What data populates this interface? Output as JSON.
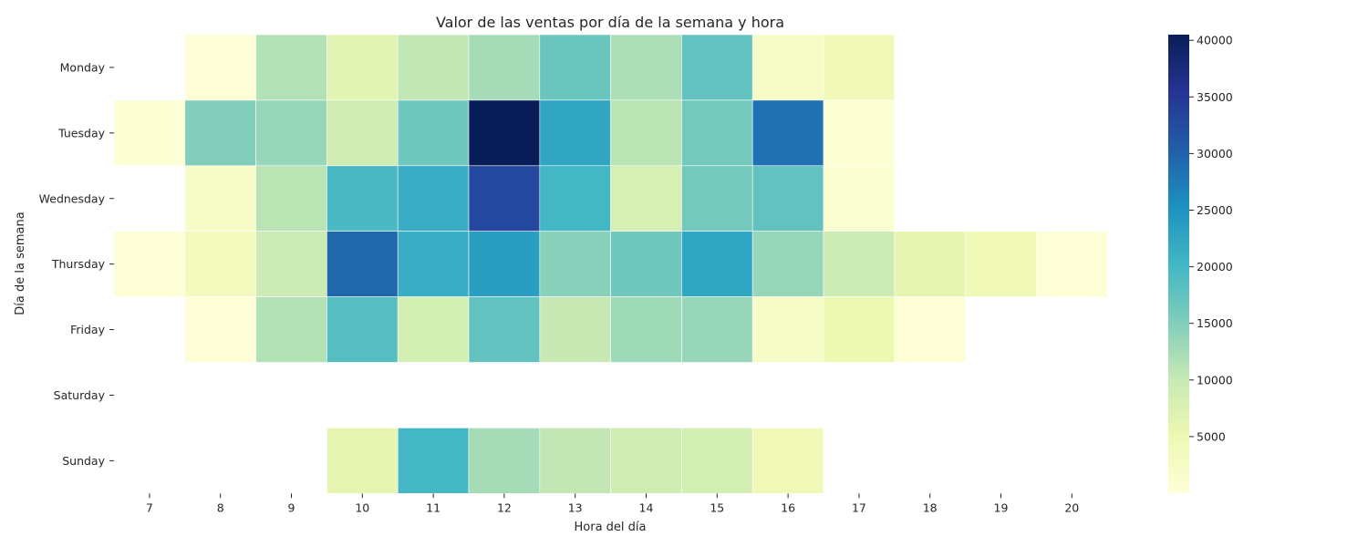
{
  "chart_data": {
    "type": "heatmap",
    "title": "Valor de las ventas por día de la semana y hora",
    "xlabel": "Hora del día",
    "ylabel": "Día de la semana",
    "x": [
      "7",
      "8",
      "9",
      "10",
      "11",
      "12",
      "13",
      "14",
      "15",
      "16",
      "17",
      "18",
      "19",
      "20"
    ],
    "y": [
      "Monday",
      "Tuesday",
      "Wednesday",
      "Thursday",
      "Friday",
      "Saturday",
      "Sunday"
    ],
    "values": [
      [
        null,
        400,
        11500,
        6500,
        10500,
        12500,
        17000,
        12000,
        17500,
        2500,
        4000,
        null,
        null,
        null
      ],
      [
        800,
        15000,
        13500,
        9000,
        16500,
        40500,
        22500,
        11000,
        16000,
        28500,
        800,
        null,
        null,
        null
      ],
      [
        null,
        2000,
        11000,
        19500,
        21500,
        33000,
        20000,
        8000,
        16000,
        17500,
        1000,
        null,
        null,
        null
      ],
      [
        500,
        3500,
        9500,
        29500,
        21500,
        23500,
        14500,
        16500,
        22500,
        13500,
        9500,
        6000,
        4000,
        500
      ],
      [
        null,
        500,
        11500,
        18500,
        8500,
        17500,
        10000,
        13000,
        13500,
        2500,
        5000,
        500,
        null,
        null
      ],
      [
        null,
        null,
        null,
        null,
        null,
        null,
        null,
        null,
        null,
        null,
        null,
        null,
        null,
        null
      ],
      [
        null,
        null,
        null,
        6000,
        20000,
        12500,
        10500,
        9000,
        8500,
        4000,
        null,
        null,
        null,
        null
      ]
    ],
    "colorbar": {
      "colormap": "YlGnBu",
      "min": 0,
      "max": 40500,
      "ticks": [
        "5000",
        "10000",
        "15000",
        "20000",
        "25000",
        "30000",
        "35000",
        "40000"
      ]
    },
    "colors": [
      "#ffffd9",
      "#edf8b1",
      "#c7e9b4",
      "#7fcdbb",
      "#41b6c4",
      "#1d91c0",
      "#225ea8",
      "#253494",
      "#081d58"
    ]
  }
}
